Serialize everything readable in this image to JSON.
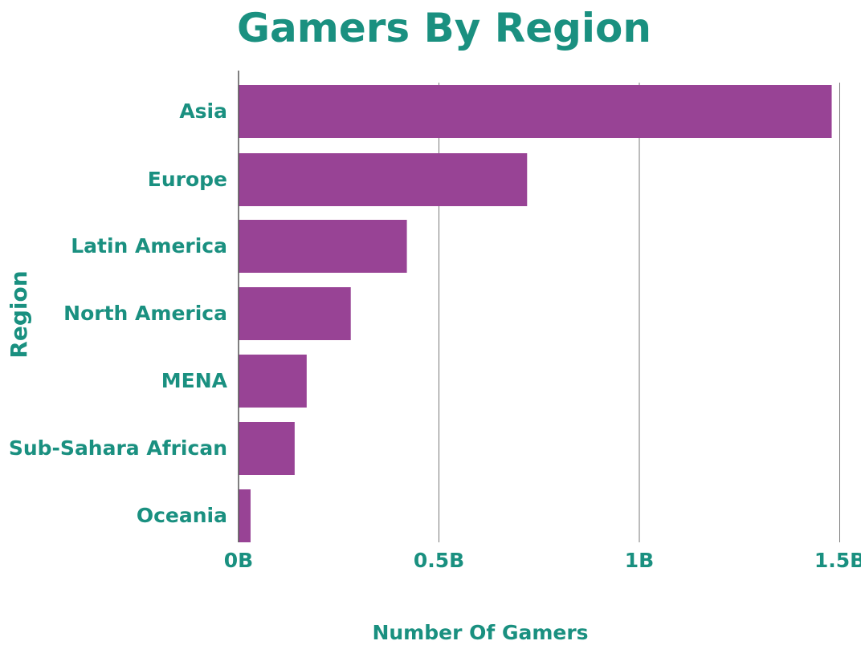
{
  "chart_data": {
    "type": "bar",
    "orientation": "horizontal",
    "title": "Gamers By Region",
    "xlabel": "Number Of Gamers",
    "ylabel": "Region",
    "categories": [
      "Asia",
      "Europe",
      "Latin America",
      "North America",
      "MENA",
      "Sub-Sahara African",
      "Oceania"
    ],
    "values": [
      1.48,
      0.72,
      0.42,
      0.28,
      0.17,
      0.14,
      0.03
    ],
    "value_unit": "billion",
    "xlim": [
      0,
      1.5
    ],
    "x_ticks": [
      {
        "value": 0,
        "label": "0B"
      },
      {
        "value": 0.5,
        "label": "0.5B"
      },
      {
        "value": 1,
        "label": "1B"
      },
      {
        "value": 1.5,
        "label": "1.5B"
      }
    ],
    "grid": "vertical",
    "legend": "none",
    "colors": {
      "bar": "#984395",
      "text": "#1a9080",
      "grid": "#7a7a7a",
      "axis": "#555555"
    }
  }
}
